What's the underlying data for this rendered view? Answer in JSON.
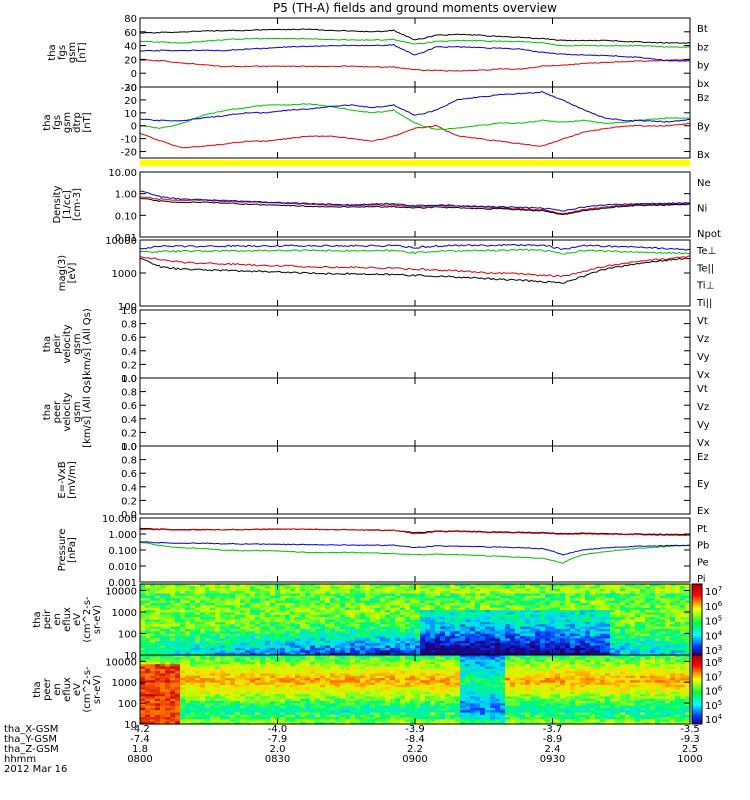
{
  "chart_data": {
    "type": "line",
    "title": "P5 (TH-A) fields and ground moments overview",
    "time_range_ticks": [
      "0800",
      "0830",
      "0900",
      "0930",
      "1000"
    ],
    "panels": [
      {
        "ylabel": [
          "tha",
          "fgs",
          "gsm",
          "[nT]"
        ],
        "ylim": [
          -20,
          80
        ],
        "yscale": "linear",
        "yticks": [
          "80",
          "60",
          "40",
          "20",
          "0",
          "-20"
        ],
        "legend": [
          {
            "name": "Bt",
            "color": "#000000"
          },
          {
            "name": "bz",
            "color": "#e00000"
          },
          {
            "name": "by",
            "color": "#00c000"
          },
          {
            "name": "bx",
            "color": "#0000e0"
          }
        ],
        "series": [
          {
            "name": "Bt",
            "color": "#000000",
            "values": [
              58,
              59,
              60,
              61,
              62,
              62,
              63,
              63,
              64,
              62,
              61,
              60,
              62,
              48,
              55,
              56,
              55,
              53,
              52,
              50,
              48,
              47,
              48,
              46,
              45,
              44,
              44
            ]
          },
          {
            "name": "bz",
            "color": "#e00000",
            "values": [
              19,
              18,
              15,
              12,
              10,
              10,
              10,
              10,
              10,
              10,
              10,
              9,
              9,
              5,
              4,
              3,
              4,
              6,
              6,
              10,
              12,
              14,
              16,
              17,
              18,
              19,
              20
            ]
          },
          {
            "name": "by",
            "color": "#00c000",
            "values": [
              46,
              45,
              44,
              46,
              49,
              50,
              50,
              50,
              50,
              49,
              48,
              48,
              49,
              42,
              46,
              47,
              47,
              46,
              46,
              44,
              40,
              40,
              40,
              40,
              40,
              38,
              38
            ]
          },
          {
            "name": "bx",
            "color": "#0000e0",
            "values": [
              32,
              33,
              33,
              33,
              33,
              35,
              36,
              38,
              39,
              40,
              40,
              40,
              41,
              26,
              38,
              38,
              37,
              36,
              35,
              30,
              28,
              26,
              26,
              24,
              22,
              18,
              18
            ]
          }
        ]
      },
      {
        "ylabel": [
          "tha",
          "fgs",
          "gsm",
          "dtrp",
          "[nT]"
        ],
        "ylim": [
          -25,
          30
        ],
        "yscale": "linear",
        "yticks": [
          "30",
          "20",
          "10",
          "0",
          "-10",
          "-20"
        ],
        "legend": [
          {
            "name": "Bz",
            "color": "#e00000"
          },
          {
            "name": "By",
            "color": "#00c000"
          },
          {
            "name": "Bx",
            "color": "#0000e0"
          }
        ],
        "series": [
          {
            "name": "Bz",
            "color": "#e00000",
            "values": [
              -6,
              -12,
              -17,
              -16,
              -14,
              -12,
              -12,
              -10,
              -8,
              -8,
              -10,
              -12,
              -8,
              -2,
              0,
              -8,
              -10,
              -12,
              -14,
              -16,
              -10,
              -5,
              -2,
              0,
              0,
              0,
              2
            ]
          },
          {
            "name": "By",
            "color": "#00c000",
            "values": [
              0,
              -2,
              2,
              8,
              12,
              14,
              16,
              16,
              17,
              15,
              12,
              10,
              12,
              2,
              -3,
              -2,
              0,
              2,
              2,
              4,
              3,
              4,
              2,
              3,
              5,
              6,
              6
            ]
          },
          {
            "name": "Bx",
            "color": "#0000e0",
            "values": [
              5,
              4,
              4,
              6,
              8,
              10,
              10,
              12,
              13,
              15,
              16,
              14,
              16,
              8,
              12,
              20,
              22,
              24,
              25,
              26,
              20,
              12,
              6,
              4,
              4,
              3,
              5
            ]
          }
        ]
      },
      {
        "ylabel": [
          "Density",
          "[1/cc]",
          "[cm-3]"
        ],
        "ylim": [
          0.01,
          10
        ],
        "yscale": "log",
        "yticks": [
          "10.00",
          "1.00",
          "0.10",
          "0.01"
        ],
        "legend": [
          {
            "name": "Ne",
            "color": "#e00000"
          },
          {
            "name": "Ni",
            "color": "#000000"
          },
          {
            "name": "Npot",
            "color": "#0000e0"
          }
        ],
        "series": [
          {
            "name": "Ne",
            "color": "#e00000",
            "values": [
              0.7,
              0.55,
              0.5,
              0.5,
              0.45,
              0.42,
              0.38,
              0.35,
              0.33,
              0.3,
              0.28,
              0.3,
              0.3,
              0.25,
              0.28,
              0.26,
              0.24,
              0.22,
              0.2,
              0.18,
              0.12,
              0.18,
              0.25,
              0.3,
              0.32,
              0.33,
              0.35
            ]
          },
          {
            "name": "Ni",
            "color": "#000000",
            "values": [
              0.6,
              0.45,
              0.4,
              0.4,
              0.38,
              0.33,
              0.3,
              0.28,
              0.26,
              0.25,
              0.24,
              0.25,
              0.25,
              0.22,
              0.24,
              0.22,
              0.2,
              0.2,
              0.18,
              0.16,
              0.11,
              0.16,
              0.22,
              0.27,
              0.3,
              0.3,
              0.33
            ]
          },
          {
            "name": "Npot",
            "color": "#0000e0",
            "values": [
              1.3,
              0.7,
              0.55,
              0.52,
              0.48,
              0.45,
              0.4,
              0.38,
              0.35,
              0.33,
              0.3,
              0.33,
              0.34,
              0.28,
              0.3,
              0.28,
              0.26,
              0.25,
              0.23,
              0.22,
              0.16,
              0.24,
              0.3,
              0.33,
              0.35,
              0.36,
              0.38
            ]
          }
        ]
      },
      {
        "ylabel": [
          "mag(3)",
          "[eV]"
        ],
        "ylim": [
          100,
          10000
        ],
        "yscale": "log",
        "yticks": [
          "10000",
          "1000",
          "100"
        ],
        "legend": [
          {
            "name": "Te⊥",
            "color": "#e00000"
          },
          {
            "name": "Te||",
            "color": "#000000"
          },
          {
            "name": "Ti⊥",
            "color": "#0000e0"
          },
          {
            "name": "Ti||",
            "color": "#00c000"
          }
        ],
        "series": [
          {
            "name": "Te⊥",
            "color": "#e00000",
            "values": [
              3200,
              2500,
              2100,
              2000,
              1900,
              1800,
              1700,
              1650,
              1550,
              1500,
              1500,
              1450,
              1400,
              1300,
              1250,
              1150,
              1050,
              1000,
              950,
              850,
              800,
              1100,
              1600,
              2000,
              2400,
              2800,
              3200
            ]
          },
          {
            "name": "Te||",
            "color": "#000000",
            "values": [
              2700,
              1500,
              1300,
              1250,
              1200,
              1150,
              1100,
              1050,
              1000,
              950,
              950,
              900,
              900,
              850,
              800,
              750,
              700,
              650,
              600,
              550,
              500,
              800,
              1300,
              1700,
              2100,
              2500,
              2800
            ]
          },
          {
            "name": "Ti⊥",
            "color": "#0000e0",
            "values": [
              5500,
              6500,
              6500,
              6500,
              6600,
              6600,
              6700,
              6700,
              6800,
              6700,
              6700,
              6700,
              6800,
              5800,
              6600,
              6800,
              6900,
              7000,
              7000,
              7000,
              5200,
              6800,
              6500,
              6300,
              5800,
              5600,
              5000
            ]
          },
          {
            "name": "Ti||",
            "color": "#00c000",
            "values": [
              4300,
              4500,
              4600,
              4600,
              4700,
              4700,
              4800,
              4800,
              4900,
              4800,
              4700,
              4700,
              4800,
              4100,
              4600,
              4700,
              4800,
              4900,
              5000,
              5000,
              3800,
              4800,
              4600,
              4400,
              4200,
              4100,
              3900
            ]
          }
        ]
      },
      {
        "ylabel": [
          "tha",
          "peir",
          "velocity",
          "gsm",
          "[km/s] (All Qs)"
        ],
        "ylim": [
          0,
          1
        ],
        "yscale": "linear",
        "yticks": [
          "1.0",
          "0.8",
          "0.6",
          "0.4",
          "0.2",
          "0.0"
        ],
        "legend": [
          {
            "name": "Vt",
            "color": "#000000"
          },
          {
            "name": "Vz",
            "color": "#e00000"
          },
          {
            "name": "Vy",
            "color": "#00c000"
          },
          {
            "name": "Vx",
            "color": "#0000e0"
          }
        ],
        "series": []
      },
      {
        "ylabel": [
          "tha",
          "peer",
          "velocity",
          "gsm",
          "[km/s] (All Qs)"
        ],
        "ylim": [
          0,
          1
        ],
        "yscale": "linear",
        "yticks": [
          "1.0",
          "0.8",
          "0.6",
          "0.4",
          "0.2",
          "0.0"
        ],
        "legend": [
          {
            "name": "Vt",
            "color": "#000000"
          },
          {
            "name": "Vz",
            "color": "#e00000"
          },
          {
            "name": "Vy",
            "color": "#00c000"
          },
          {
            "name": "Vx",
            "color": "#0000e0"
          }
        ],
        "series": []
      },
      {
        "ylabel": [
          "E=-VxB",
          "[mV/m]"
        ],
        "ylim": [
          0,
          1
        ],
        "yscale": "linear",
        "yticks": [
          "1.0",
          "0.8",
          "0.6",
          "0.4",
          "0.2",
          "0.0"
        ],
        "legend": [
          {
            "name": "Ez",
            "color": "#e00000"
          },
          {
            "name": "Ey",
            "color": "#00c000"
          },
          {
            "name": "Ex",
            "color": "#0000e0"
          }
        ],
        "series": []
      },
      {
        "ylabel": [
          "Pressure",
          "[nPa]"
        ],
        "ylim": [
          0.001,
          10
        ],
        "yscale": "log",
        "yticks": [
          "10.000",
          "1.000",
          "0.100",
          "0.010",
          "0.001"
        ],
        "legend": [
          {
            "name": "Pt",
            "color": "#000000"
          },
          {
            "name": "Pb",
            "color": "#e00000"
          },
          {
            "name": "Pe",
            "color": "#00c000"
          },
          {
            "name": "Pi",
            "color": "#0000e0"
          }
        ],
        "series": [
          {
            "name": "Pt",
            "color": "#000000",
            "values": [
              2.2,
              2.0,
              1.9,
              1.9,
              1.9,
              1.9,
              2.0,
              2.0,
              2.0,
              1.9,
              1.8,
              1.8,
              1.7,
              1.2,
              1.5,
              1.5,
              1.4,
              1.3,
              1.3,
              1.2,
              1.1,
              1.1,
              1.1,
              1.0,
              1.0,
              0.95,
              0.95
            ]
          },
          {
            "name": "Pb",
            "color": "#e00000",
            "values": [
              1.9,
              1.9,
              1.8,
              1.8,
              1.9,
              1.9,
              1.9,
              2.0,
              2.0,
              1.9,
              1.8,
              1.7,
              1.7,
              1.0,
              1.4,
              1.4,
              1.3,
              1.2,
              1.2,
              1.1,
              1.0,
              1.0,
              1.0,
              0.95,
              0.9,
              0.85,
              0.85
            ]
          },
          {
            "name": "Pe",
            "color": "#00c000",
            "values": [
              0.3,
              0.18,
              0.14,
              0.12,
              0.1,
              0.09,
              0.09,
              0.08,
              0.07,
              0.07,
              0.07,
              0.065,
              0.06,
              0.05,
              0.055,
              0.05,
              0.045,
              0.04,
              0.035,
              0.03,
              0.015,
              0.05,
              0.08,
              0.11,
              0.14,
              0.17,
              0.2
            ]
          },
          {
            "name": "Pi",
            "color": "#0000e0",
            "values": [
              0.32,
              0.28,
              0.27,
              0.26,
              0.25,
              0.24,
              0.23,
              0.22,
              0.22,
              0.21,
              0.2,
              0.2,
              0.2,
              0.14,
              0.18,
              0.17,
              0.16,
              0.15,
              0.14,
              0.12,
              0.05,
              0.1,
              0.14,
              0.16,
              0.18,
              0.19,
              0.2
            ]
          }
        ]
      },
      {
        "type": "heatmap",
        "ylabel": [
          "tha",
          "peir",
          "en",
          "eflux",
          "eV",
          "(cm^2-s-",
          "sr-eV)"
        ],
        "ylim": [
          10,
          20000
        ],
        "yscale": "log",
        "yticks": [
          "10000",
          "1000",
          "100",
          "10"
        ],
        "colorbar": {
          "ticks": [
            "10^7",
            "10^6",
            "10^5",
            "10^4",
            "10^3"
          ]
        }
      },
      {
        "type": "heatmap",
        "ylabel": [
          "tha",
          "peer",
          "en",
          "eflux",
          "eV",
          "(cm^2-s-",
          "sr-eV)"
        ],
        "ylim": [
          10,
          20000
        ],
        "yscale": "log",
        "yticks": [
          "10000",
          "1000",
          "100",
          "10"
        ],
        "colorbar": {
          "ticks": [
            "10^8",
            "10^7",
            "10^6",
            "10^5",
            "10^4"
          ]
        }
      }
    ],
    "ephemeris": {
      "labels": [
        "tha_X-GSM",
        "tha_Y-GSM",
        "tha_Z-GSM",
        "hhmm",
        "2012 Mar 16"
      ],
      "columns": [
        {
          "x": "-4.2",
          "y": "-7.4",
          "z": "1.8",
          "t": "0800"
        },
        {
          "x": "-4.0",
          "y": "-7.9",
          "z": "2.0",
          "t": "0830"
        },
        {
          "x": "-3.9",
          "y": "-8.4",
          "z": "2.2",
          "t": "0900"
        },
        {
          "x": "-3.7",
          "y": "-8.9",
          "z": "2.4",
          "t": "0930"
        },
        {
          "x": "-3.5",
          "y": "-9.3",
          "z": "2.5",
          "t": "1000"
        }
      ]
    }
  }
}
